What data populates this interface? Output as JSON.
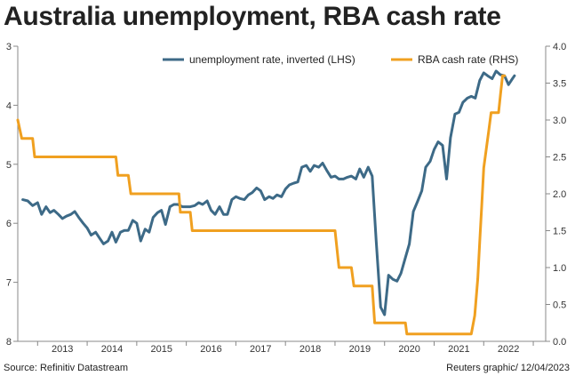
{
  "title": "Australia unemployment, RBA cash rate",
  "source": "Source: Refinitiv Datastream",
  "credit": "Reuters graphic/ 12/04/2023",
  "colors": {
    "unemployment": "#3d6a87",
    "cash_rate": "#f0a020",
    "axis": "#888888"
  },
  "chart_data": {
    "type": "line",
    "legend_position": "top-right",
    "grid": false,
    "x_ticks": [
      "2013",
      "2014",
      "2015",
      "2016",
      "2017",
      "2018",
      "2019",
      "2020",
      "2021",
      "2022"
    ],
    "xlim": [
      2012.6,
      2023.25
    ],
    "left_axis": {
      "ticks": [
        "3",
        "4",
        "5",
        "6",
        "7",
        "8"
      ],
      "ylim": [
        3,
        8
      ],
      "inverted": true
    },
    "right_axis": {
      "ticks": [
        "0.0",
        "0.5",
        "1.0",
        "1.5",
        "2.0",
        "2.5",
        "3.0",
        "3.5",
        "4.0"
      ],
      "ylim": [
        0,
        4
      ]
    },
    "series": [
      {
        "name": "unemployment rate, inverted (LHS)",
        "axis": "left",
        "points": [
          [
            2012.7,
            5.6
          ],
          [
            2012.8,
            5.62
          ],
          [
            2012.9,
            5.7
          ],
          [
            2013.0,
            5.65
          ],
          [
            2013.08,
            5.85
          ],
          [
            2013.17,
            5.72
          ],
          [
            2013.25,
            5.82
          ],
          [
            2013.33,
            5.78
          ],
          [
            2013.42,
            5.85
          ],
          [
            2013.5,
            5.92
          ],
          [
            2013.58,
            5.88
          ],
          [
            2013.67,
            5.85
          ],
          [
            2013.75,
            5.8
          ],
          [
            2013.83,
            5.9
          ],
          [
            2013.92,
            6.0
          ],
          [
            2014.0,
            6.08
          ],
          [
            2014.08,
            6.2
          ],
          [
            2014.17,
            6.15
          ],
          [
            2014.25,
            6.25
          ],
          [
            2014.33,
            6.35
          ],
          [
            2014.42,
            6.3
          ],
          [
            2014.5,
            6.15
          ],
          [
            2014.58,
            6.32
          ],
          [
            2014.67,
            6.15
          ],
          [
            2014.75,
            6.12
          ],
          [
            2014.83,
            6.12
          ],
          [
            2014.92,
            5.95
          ],
          [
            2015.0,
            6.0
          ],
          [
            2015.08,
            6.3
          ],
          [
            2015.17,
            6.1
          ],
          [
            2015.25,
            6.15
          ],
          [
            2015.33,
            5.9
          ],
          [
            2015.42,
            5.82
          ],
          [
            2015.5,
            5.78
          ],
          [
            2015.58,
            6.02
          ],
          [
            2015.67,
            5.72
          ],
          [
            2015.75,
            5.68
          ],
          [
            2015.83,
            5.68
          ],
          [
            2015.92,
            5.72
          ],
          [
            2016.0,
            5.72
          ],
          [
            2016.08,
            5.72
          ],
          [
            2016.17,
            5.7
          ],
          [
            2016.25,
            5.65
          ],
          [
            2016.33,
            5.68
          ],
          [
            2016.42,
            5.62
          ],
          [
            2016.5,
            5.78
          ],
          [
            2016.58,
            5.85
          ],
          [
            2016.67,
            5.72
          ],
          [
            2016.75,
            5.85
          ],
          [
            2016.83,
            5.85
          ],
          [
            2016.92,
            5.6
          ],
          [
            2017.0,
            5.55
          ],
          [
            2017.08,
            5.58
          ],
          [
            2017.17,
            5.6
          ],
          [
            2017.25,
            5.52
          ],
          [
            2017.33,
            5.48
          ],
          [
            2017.42,
            5.4
          ],
          [
            2017.5,
            5.45
          ],
          [
            2017.58,
            5.6
          ],
          [
            2017.67,
            5.55
          ],
          [
            2017.75,
            5.58
          ],
          [
            2017.83,
            5.52
          ],
          [
            2017.92,
            5.55
          ],
          [
            2018.0,
            5.42
          ],
          [
            2018.08,
            5.35
          ],
          [
            2018.17,
            5.32
          ],
          [
            2018.25,
            5.3
          ],
          [
            2018.33,
            5.05
          ],
          [
            2018.42,
            5.02
          ],
          [
            2018.5,
            5.12
          ],
          [
            2018.58,
            5.02
          ],
          [
            2018.67,
            5.05
          ],
          [
            2018.75,
            4.98
          ],
          [
            2018.83,
            5.1
          ],
          [
            2018.92,
            5.22
          ],
          [
            2019.0,
            5.2
          ],
          [
            2019.08,
            5.25
          ],
          [
            2019.17,
            5.25
          ],
          [
            2019.25,
            5.22
          ],
          [
            2019.33,
            5.2
          ],
          [
            2019.42,
            5.25
          ],
          [
            2019.5,
            5.08
          ],
          [
            2019.58,
            5.22
          ],
          [
            2019.67,
            5.05
          ],
          [
            2019.75,
            5.2
          ],
          [
            2019.83,
            6.3
          ],
          [
            2019.92,
            7.42
          ],
          [
            2020.0,
            7.55
          ],
          [
            2020.08,
            6.88
          ],
          [
            2020.17,
            6.95
          ],
          [
            2020.25,
            6.98
          ],
          [
            2020.33,
            6.85
          ],
          [
            2020.42,
            6.58
          ],
          [
            2020.5,
            6.35
          ],
          [
            2020.58,
            5.8
          ],
          [
            2020.67,
            5.62
          ],
          [
            2020.75,
            5.45
          ],
          [
            2020.83,
            5.05
          ],
          [
            2020.92,
            4.95
          ],
          [
            2021.0,
            4.75
          ],
          [
            2021.08,
            4.62
          ],
          [
            2021.17,
            4.68
          ],
          [
            2021.25,
            5.25
          ],
          [
            2021.33,
            4.55
          ],
          [
            2021.42,
            4.15
          ],
          [
            2021.5,
            4.12
          ],
          [
            2021.58,
            3.95
          ],
          [
            2021.67,
            3.88
          ],
          [
            2021.75,
            3.85
          ],
          [
            2021.83,
            3.88
          ],
          [
            2021.92,
            3.58
          ],
          [
            2022.0,
            3.45
          ],
          [
            2022.08,
            3.5
          ],
          [
            2022.17,
            3.55
          ],
          [
            2022.25,
            3.42
          ],
          [
            2022.33,
            3.48
          ],
          [
            2022.42,
            3.5
          ],
          [
            2022.5,
            3.65
          ],
          [
            2022.58,
            3.55
          ],
          [
            2022.62,
            3.5
          ]
        ]
      },
      {
        "name": "RBA cash rate (RHS)",
        "axis": "right",
        "points": [
          [
            2012.6,
            3.0
          ],
          [
            2012.68,
            2.75
          ],
          [
            2012.9,
            2.75
          ],
          [
            2012.94,
            2.5
          ],
          [
            2014.58,
            2.5
          ],
          [
            2014.62,
            2.25
          ],
          [
            2014.83,
            2.25
          ],
          [
            2014.88,
            2.0
          ],
          [
            2015.85,
            2.0
          ],
          [
            2015.88,
            1.75
          ],
          [
            2016.08,
            1.75
          ],
          [
            2016.12,
            1.5
          ],
          [
            2019.0,
            1.5
          ],
          [
            2019.08,
            1.0
          ],
          [
            2019.33,
            1.0
          ],
          [
            2019.38,
            0.75
          ],
          [
            2019.75,
            0.75
          ],
          [
            2019.8,
            0.25
          ],
          [
            2020.42,
            0.25
          ],
          [
            2020.45,
            0.1
          ],
          [
            2021.75,
            0.1
          ],
          [
            2021.82,
            0.35
          ],
          [
            2021.88,
            0.85
          ],
          [
            2021.92,
            1.35
          ],
          [
            2021.96,
            1.85
          ],
          [
            2022.0,
            2.35
          ],
          [
            2022.05,
            2.6
          ],
          [
            2022.1,
            2.85
          ],
          [
            2022.15,
            3.1
          ],
          [
            2022.3,
            3.1
          ],
          [
            2022.34,
            3.35
          ],
          [
            2022.38,
            3.6
          ],
          [
            2022.42,
            3.6
          ]
        ]
      }
    ]
  }
}
